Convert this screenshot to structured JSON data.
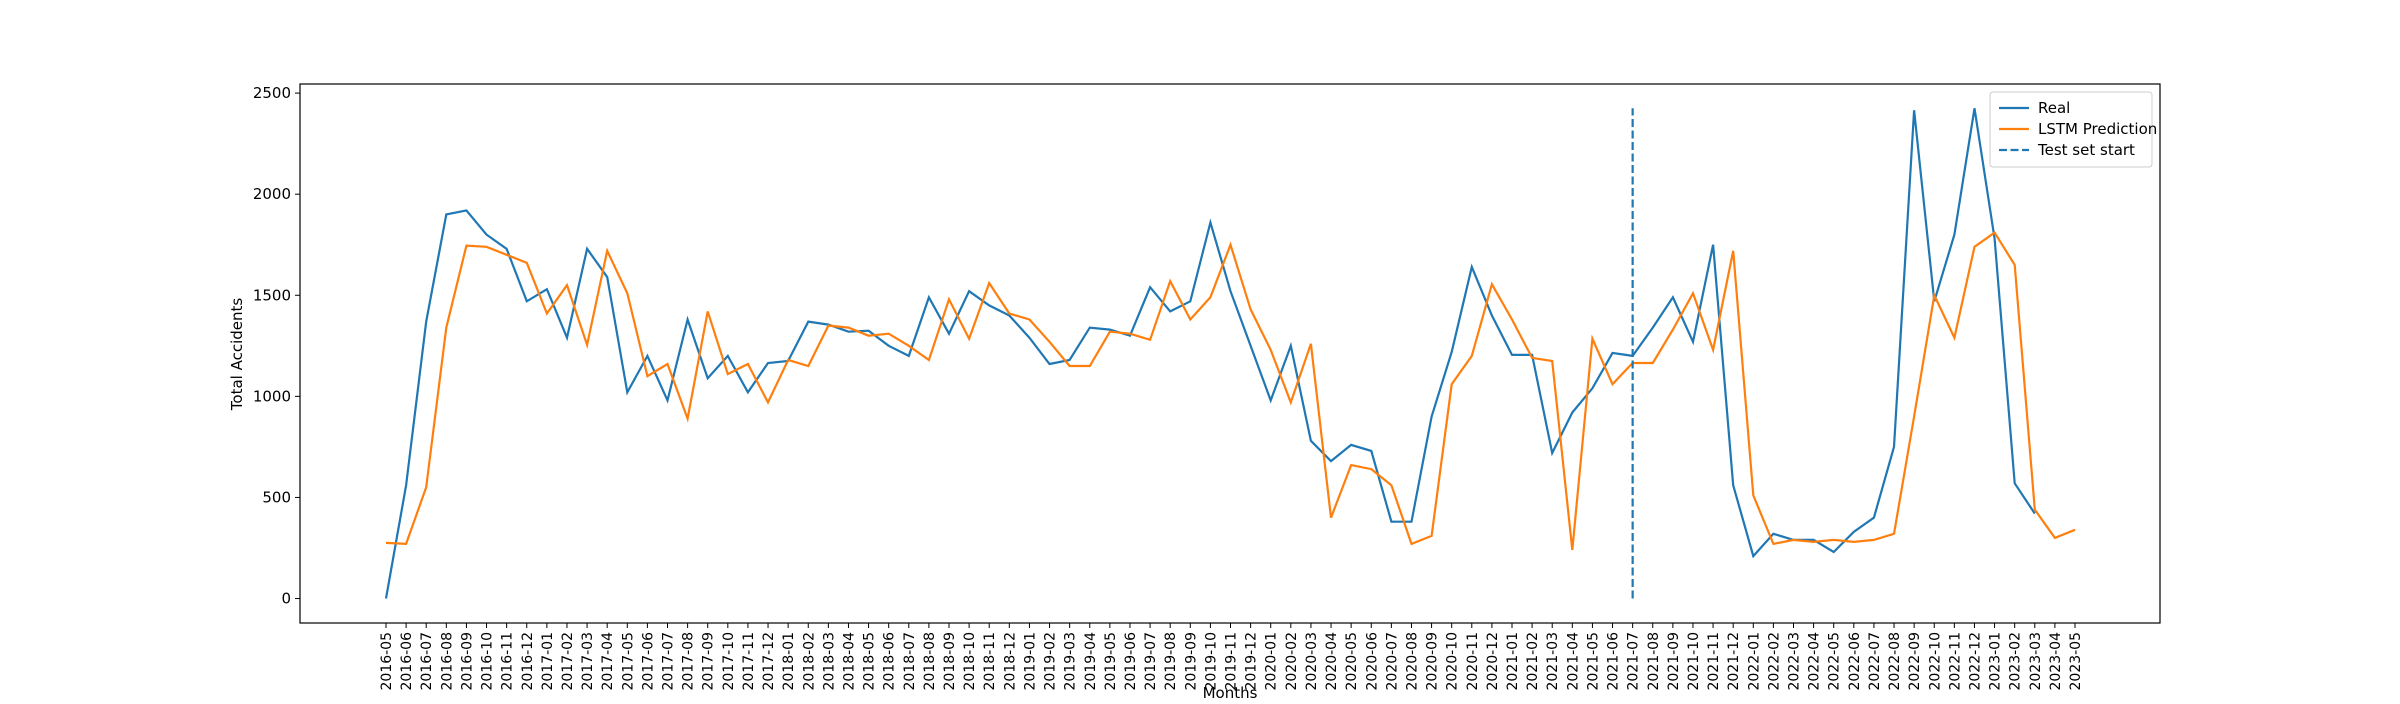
{
  "chart_data": {
    "type": "line",
    "x_label": "Months",
    "y_label": "Total Accidents",
    "categories": [
      "2016-05",
      "2016-06",
      "2016-07",
      "2016-08",
      "2016-09",
      "2016-10",
      "2016-11",
      "2016-12",
      "2017-01",
      "2017-02",
      "2017-03",
      "2017-04",
      "2017-05",
      "2017-06",
      "2017-07",
      "2017-08",
      "2017-09",
      "2017-10",
      "2017-11",
      "2017-12",
      "2018-01",
      "2018-02",
      "2018-03",
      "2018-04",
      "2018-05",
      "2018-06",
      "2018-07",
      "2018-08",
      "2018-09",
      "2018-10",
      "2018-11",
      "2018-12",
      "2019-01",
      "2019-02",
      "2019-03",
      "2019-04",
      "2019-05",
      "2019-06",
      "2019-07",
      "2019-08",
      "2019-09",
      "2019-10",
      "2019-11",
      "2019-12",
      "2020-01",
      "2020-02",
      "2020-03",
      "2020-04",
      "2020-05",
      "2020-06",
      "2020-07",
      "2020-08",
      "2020-09",
      "2020-10",
      "2020-11",
      "2020-12",
      "2021-01",
      "2021-02",
      "2021-03",
      "2021-04",
      "2021-05",
      "2021-06",
      "2021-07",
      "2021-08",
      "2021-09",
      "2021-10",
      "2021-11",
      "2021-12",
      "2022-01",
      "2022-02",
      "2022-03",
      "2022-04",
      "2022-05",
      "2022-06",
      "2022-07",
      "2022-08",
      "2022-09",
      "2022-10",
      "2022-11",
      "2022-12",
      "2023-01",
      "2023-02",
      "2023-03",
      "2023-04",
      "2023-05"
    ],
    "series": [
      {
        "name": "Real",
        "color": "#1f77b4",
        "values": [
          0,
          560,
          1370,
          1900,
          1920,
          1800,
          1730,
          1470,
          1530,
          1290,
          1730,
          1590,
          1020,
          1200,
          980,
          1380,
          1090,
          1200,
          1020,
          1165,
          1175,
          1370,
          1355,
          1320,
          1325,
          1250,
          1200,
          1490,
          1310,
          1520,
          1450,
          1400,
          1290,
          1160,
          1180,
          1340,
          1330,
          1300,
          1540,
          1420,
          1470,
          1860,
          1520,
          1250,
          980,
          1250,
          780,
          680,
          760,
          730,
          380,
          380,
          900,
          1220,
          1640,
          1400,
          1205,
          1205,
          720,
          920,
          1040,
          1215,
          1200,
          1340,
          1490,
          1270,
          1750,
          560,
          210,
          320,
          290,
          290,
          230,
          330,
          400,
          750,
          2415,
          1470,
          1800,
          2425,
          1780,
          570,
          420,
          null,
          null
        ]
      },
      {
        "name": "LSTM Prediction",
        "color": "#ff7f0e",
        "values": [
          275,
          270,
          550,
          1340,
          1745,
          1740,
          1700,
          1660,
          1410,
          1550,
          1255,
          1720,
          1510,
          1100,
          1160,
          890,
          1420,
          1110,
          1160,
          970,
          1180,
          1150,
          1350,
          1340,
          1300,
          1310,
          1250,
          1180,
          1480,
          1285,
          1560,
          1410,
          1380,
          1270,
          1150,
          1150,
          1320,
          1310,
          1280,
          1570,
          1380,
          1490,
          1750,
          1430,
          1230,
          970,
          1260,
          400,
          660,
          640,
          560,
          270,
          310,
          1060,
          1200,
          1555,
          1380,
          1190,
          1175,
          240,
          1285,
          1060,
          1165,
          1165,
          1330,
          1510,
          1230,
          1720,
          510,
          270,
          290,
          280,
          290,
          280,
          290,
          320,
          900,
          1500,
          1290,
          1740,
          1810,
          1650,
          440,
          300,
          340
        ]
      }
    ],
    "vline": {
      "name": "Test set start",
      "x": "2021-07",
      "ymin": 0,
      "ymax": 2425,
      "color": "#1f77b4"
    },
    "ylim": [
      -121,
      2545
    ],
    "yticks": [
      0,
      500,
      1000,
      1500,
      2000,
      2500
    ],
    "grid": false,
    "legend": "upper right"
  }
}
